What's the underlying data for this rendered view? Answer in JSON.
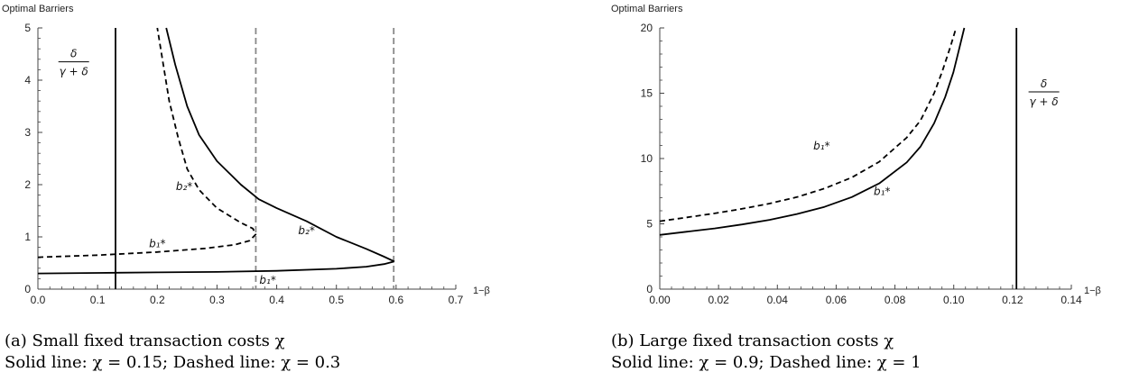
{
  "chart_data": [
    {
      "type": "line",
      "title": "Optimal Barriers",
      "xlabel": "1−β",
      "ylabel": "Optimal Barriers",
      "xlim": [
        0,
        0.7
      ],
      "ylim": [
        0,
        5
      ],
      "xticks": [
        "0.0",
        "0.1",
        "0.2",
        "0.3",
        "0.4",
        "0.5",
        "0.6",
        "0.7"
      ],
      "yticks": [
        "0",
        "1",
        "2",
        "3",
        "4",
        "5"
      ],
      "grid": false,
      "series": [
        {
          "style": "solid",
          "points": [
            [
              0,
              0.3
            ],
            [
              0.1,
              0.31
            ],
            [
              0.2,
              0.32
            ],
            [
              0.3,
              0.33
            ],
            [
              0.4,
              0.35
            ],
            [
              0.5,
              0.39
            ],
            [
              0.55,
              0.43
            ],
            [
              0.58,
              0.48
            ],
            [
              0.597,
              0.53
            ]
          ]
        },
        {
          "style": "solid",
          "points": [
            [
              0.597,
              0.53
            ],
            [
              0.58,
              0.62
            ],
            [
              0.55,
              0.77
            ],
            [
              0.5,
              1.0
            ],
            [
              0.45,
              1.3
            ],
            [
              0.4,
              1.55
            ],
            [
              0.37,
              1.72
            ],
            [
              0.34,
              2.0
            ],
            [
              0.3,
              2.45
            ],
            [
              0.27,
              2.95
            ],
            [
              0.25,
              3.5
            ],
            [
              0.23,
              4.3
            ],
            [
              0.215,
              5.0
            ]
          ]
        },
        {
          "style": "dashed",
          "points": [
            [
              0,
              0.61
            ],
            [
              0.1,
              0.65
            ],
            [
              0.2,
              0.71
            ],
            [
              0.28,
              0.78
            ],
            [
              0.33,
              0.85
            ],
            [
              0.355,
              0.93
            ],
            [
              0.365,
              1.05
            ],
            [
              0.36,
              1.16
            ],
            [
              0.34,
              1.27
            ],
            [
              0.3,
              1.55
            ],
            [
              0.27,
              1.9
            ],
            [
              0.25,
              2.3
            ],
            [
              0.235,
              2.9
            ],
            [
              0.22,
              3.6
            ],
            [
              0.21,
              4.3
            ],
            [
              0.2,
              5.0
            ]
          ]
        }
      ],
      "vertical_lines": [
        {
          "x": 0.13,
          "style": "solid"
        },
        {
          "x": 0.365,
          "style": "dashed"
        },
        {
          "x": 0.596,
          "style": "dashed"
        }
      ],
      "annotations": [
        {
          "text": "b₂*",
          "x": 0.245,
          "y": 1.9
        },
        {
          "text": "b₂*",
          "x": 0.45,
          "y": 1.05
        },
        {
          "text": "b₁*",
          "x": 0.2,
          "y": 0.8
        },
        {
          "text": "b₁*",
          "x": 0.385,
          "y": 0.1
        }
      ],
      "fraction_label": {
        "num": "δ",
        "den": "γ + δ",
        "x": 0.06,
        "y": 4.3
      },
      "caption_lines": [
        "(a) Small fixed transaction costs χ",
        "Solid line: χ = 0.15; Dashed line: χ = 0.3"
      ]
    },
    {
      "type": "line",
      "title": "Optimal Barriers",
      "xlabel": "1−β",
      "ylabel": "Optimal Barriers",
      "xlim": [
        0,
        0.15
      ],
      "ylim": [
        0,
        20
      ],
      "xticks": [
        "0.00",
        "0.02",
        "0.04",
        "0.06",
        "0.08",
        "0.10",
        "0.12",
        "0.14"
      ],
      "yticks": [
        "0",
        "5",
        "10",
        "15",
        "20"
      ],
      "grid": false,
      "series": [
        {
          "style": "solid",
          "points": [
            [
              0,
              4.15
            ],
            [
              0.01,
              4.4
            ],
            [
              0.02,
              4.65
            ],
            [
              0.03,
              4.95
            ],
            [
              0.04,
              5.3
            ],
            [
              0.05,
              5.75
            ],
            [
              0.06,
              6.3
            ],
            [
              0.07,
              7.05
            ],
            [
              0.08,
              8.1
            ],
            [
              0.09,
              9.7
            ],
            [
              0.095,
              10.9
            ],
            [
              0.1,
              12.7
            ],
            [
              0.104,
              14.7
            ],
            [
              0.107,
              16.6
            ],
            [
              0.109,
              18.3
            ],
            [
              0.111,
              20
            ]
          ]
        },
        {
          "style": "dashed",
          "points": [
            [
              0,
              5.2
            ],
            [
              0.01,
              5.5
            ],
            [
              0.02,
              5.8
            ],
            [
              0.03,
              6.15
            ],
            [
              0.04,
              6.55
            ],
            [
              0.05,
              7.05
            ],
            [
              0.06,
              7.7
            ],
            [
              0.07,
              8.55
            ],
            [
              0.08,
              9.75
            ],
            [
              0.09,
              11.6
            ],
            [
              0.095,
              12.9
            ],
            [
              0.1,
              15.0
            ],
            [
              0.103,
              16.7
            ],
            [
              0.106,
              18.6
            ],
            [
              0.108,
              20
            ]
          ]
        }
      ],
      "vertical_lines": [
        {
          "x": 0.13,
          "style": "solid"
        }
      ],
      "annotations": [
        {
          "text": "b₁*",
          "x": 0.059,
          "y": 10.7
        },
        {
          "text": "b₁*",
          "x": 0.081,
          "y": 7.2
        }
      ],
      "fraction_label": {
        "num": "δ",
        "den": "γ + δ",
        "x": 0.14,
        "y": 14.9
      },
      "caption_lines": [
        "(b) Large fixed transaction costs χ",
        "Solid line: χ = 0.9; Dashed line: χ = 1"
      ]
    }
  ]
}
